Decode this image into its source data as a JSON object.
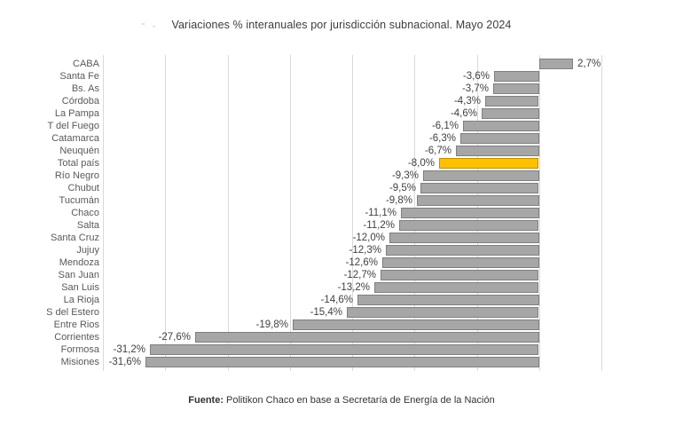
{
  "chart_data": {
    "type": "bar",
    "orientation": "horizontal",
    "title": "Variaciones % interanuales por jurisdicción subnacional. Mayo 2024",
    "categories": [
      "CABA",
      "Santa Fe",
      "Bs. As",
      "Córdoba",
      "La Pampa",
      "T del Fuego",
      "Catamarca",
      "Neuquén",
      "Total país",
      "Río Negro",
      "Chubut",
      "Tucumán",
      "Chaco",
      "Salta",
      "Santa Cruz",
      "Jujuy",
      "Mendoza",
      "San Juan",
      "San Luis",
      "La Rioja",
      "S del Estero",
      "Entre Rios",
      "Corrientes",
      "Formosa",
      "Misiones"
    ],
    "values": [
      2.7,
      -3.6,
      -3.7,
      -4.3,
      -4.6,
      -6.1,
      -6.3,
      -6.7,
      -8.0,
      -9.3,
      -9.5,
      -9.8,
      -11.1,
      -11.2,
      -12.0,
      -12.3,
      -12.6,
      -12.7,
      -13.2,
      -14.6,
      -15.4,
      -19.8,
      -27.6,
      -31.2,
      -31.6
    ],
    "value_labels": [
      "2,7%",
      "-3,6%",
      "-3,7%",
      "-4,3%",
      "-4,6%",
      "-6,1%",
      "-6,3%",
      "-6,7%",
      "-8,0%",
      "-9,3%",
      "-9,5%",
      "-9,8%",
      "-11,1%",
      "-11,2%",
      "-12,0%",
      "-12,3%",
      "-12,6%",
      "-12,7%",
      "-13,2%",
      "-14,6%",
      "-15,4%",
      "-19,8%",
      "-27,6%",
      "-31,2%",
      "-31,6%"
    ],
    "highlight_category": "Total país",
    "highlight_index": 8,
    "xlabel": "",
    "ylabel": "",
    "xlim": [
      -35,
      5
    ],
    "grid_step": 5,
    "grid_on": true,
    "legend": "none",
    "colors": {
      "bar_fill": "#a6a6a6",
      "bar_border": "#7f7f7f",
      "highlight_fill": "#ffc000",
      "highlight_border": "#bf8f00",
      "gridline": "#d9d9d9"
    }
  },
  "source": {
    "prefix": "Fuente:",
    "text": "Politikon Chaco en base a Secretaría de Energía de la Nación"
  }
}
